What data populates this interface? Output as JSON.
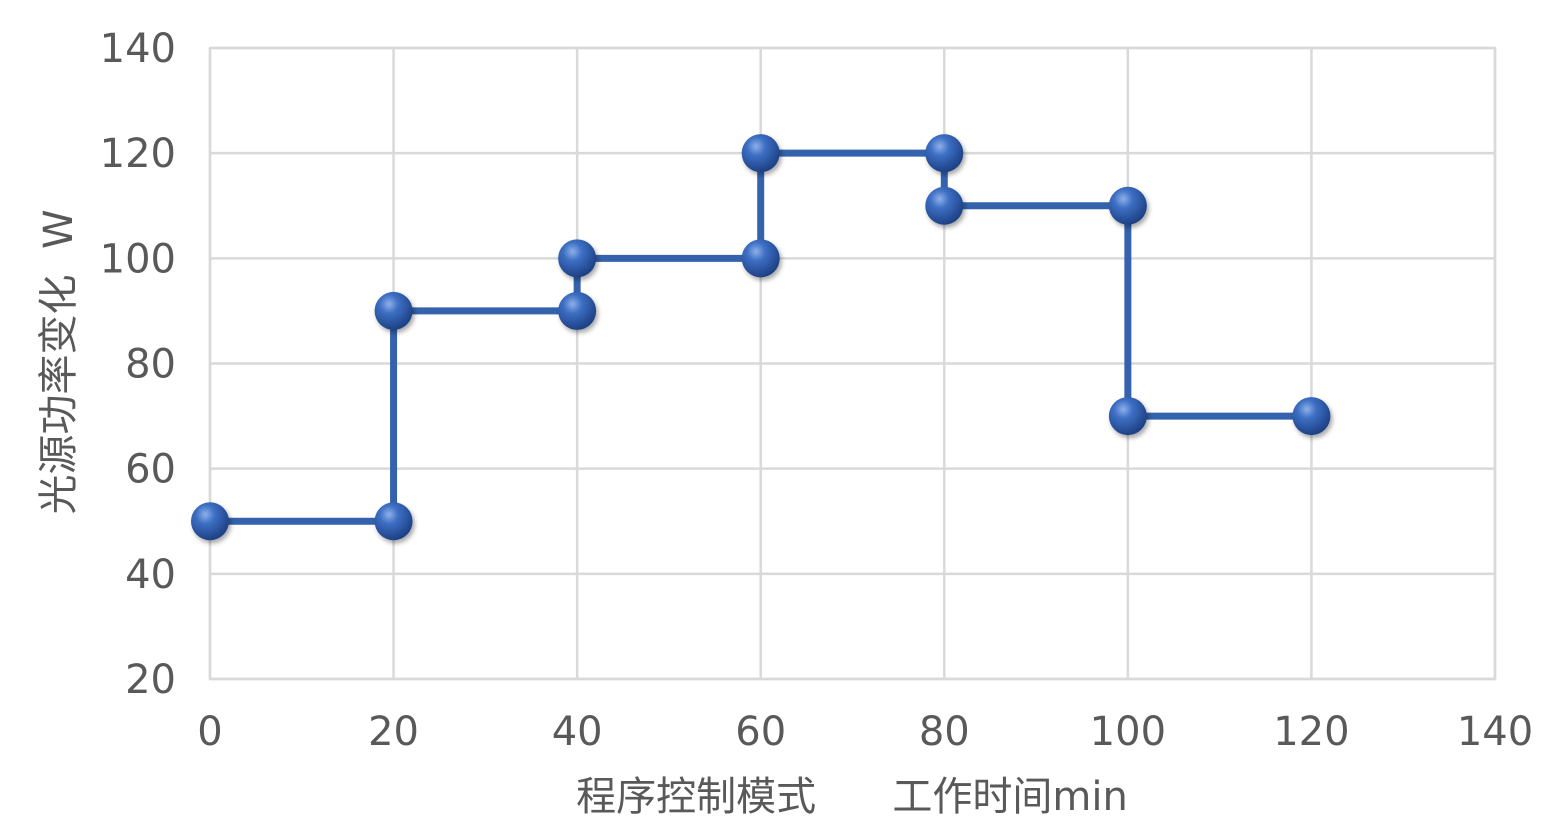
{
  "chart_data": {
    "type": "line",
    "line_style": "step",
    "title": "",
    "xlabel": "程序控制模式      工作时间min",
    "ylabel": "光源功率变化  W",
    "xlim": [
      0,
      140
    ],
    "ylim": [
      20,
      140
    ],
    "xticks": [
      0,
      20,
      40,
      60,
      80,
      100,
      120,
      140
    ],
    "yticks": [
      20,
      40,
      60,
      80,
      100,
      120,
      140
    ],
    "grid": true,
    "legend": "none",
    "series": [
      {
        "color": "#3462ad",
        "marker": "circle",
        "points": [
          {
            "x": 0,
            "y": 50
          },
          {
            "x": 20,
            "y": 50
          },
          {
            "x": 20,
            "y": 90
          },
          {
            "x": 40,
            "y": 90
          },
          {
            "x": 40,
            "y": 100
          },
          {
            "x": 60,
            "y": 100
          },
          {
            "x": 60,
            "y": 120
          },
          {
            "x": 80,
            "y": 120
          },
          {
            "x": 80,
            "y": 110
          },
          {
            "x": 100,
            "y": 110
          },
          {
            "x": 100,
            "y": 70
          },
          {
            "x": 120,
            "y": 70
          }
        ]
      }
    ]
  }
}
